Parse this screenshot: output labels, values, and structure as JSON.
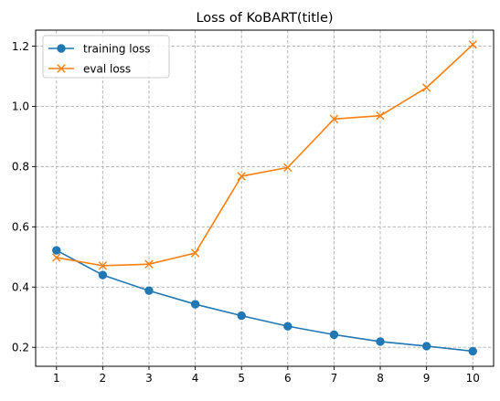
{
  "chart_data": {
    "type": "line",
    "title": "Loss of KoBART(title)",
    "xlabel": "",
    "ylabel": "",
    "x": [
      1,
      2,
      3,
      4,
      5,
      6,
      7,
      8,
      9,
      10
    ],
    "xlim": [
      0.55,
      10.45
    ],
    "ylim": [
      0.137,
      1.253
    ],
    "xticks": [
      "1",
      "2",
      "3",
      "4",
      "5",
      "6",
      "7",
      "8",
      "9",
      "10"
    ],
    "yticks": [
      "0.2",
      "0.4",
      "0.6",
      "0.8",
      "1.0",
      "1.2"
    ],
    "grid": true,
    "legend_position": "top-left",
    "series": [
      {
        "name": "training loss",
        "marker": "circle",
        "color": "#1f77b4",
        "values": [
          0.522,
          0.44,
          0.388,
          0.343,
          0.305,
          0.27,
          0.242,
          0.219,
          0.204,
          0.187
        ]
      },
      {
        "name": "eval loss",
        "marker": "x",
        "color": "#ff7f0e",
        "values": [
          0.498,
          0.471,
          0.476,
          0.513,
          0.768,
          0.797,
          0.958,
          0.969,
          1.062,
          1.205
        ]
      }
    ]
  }
}
